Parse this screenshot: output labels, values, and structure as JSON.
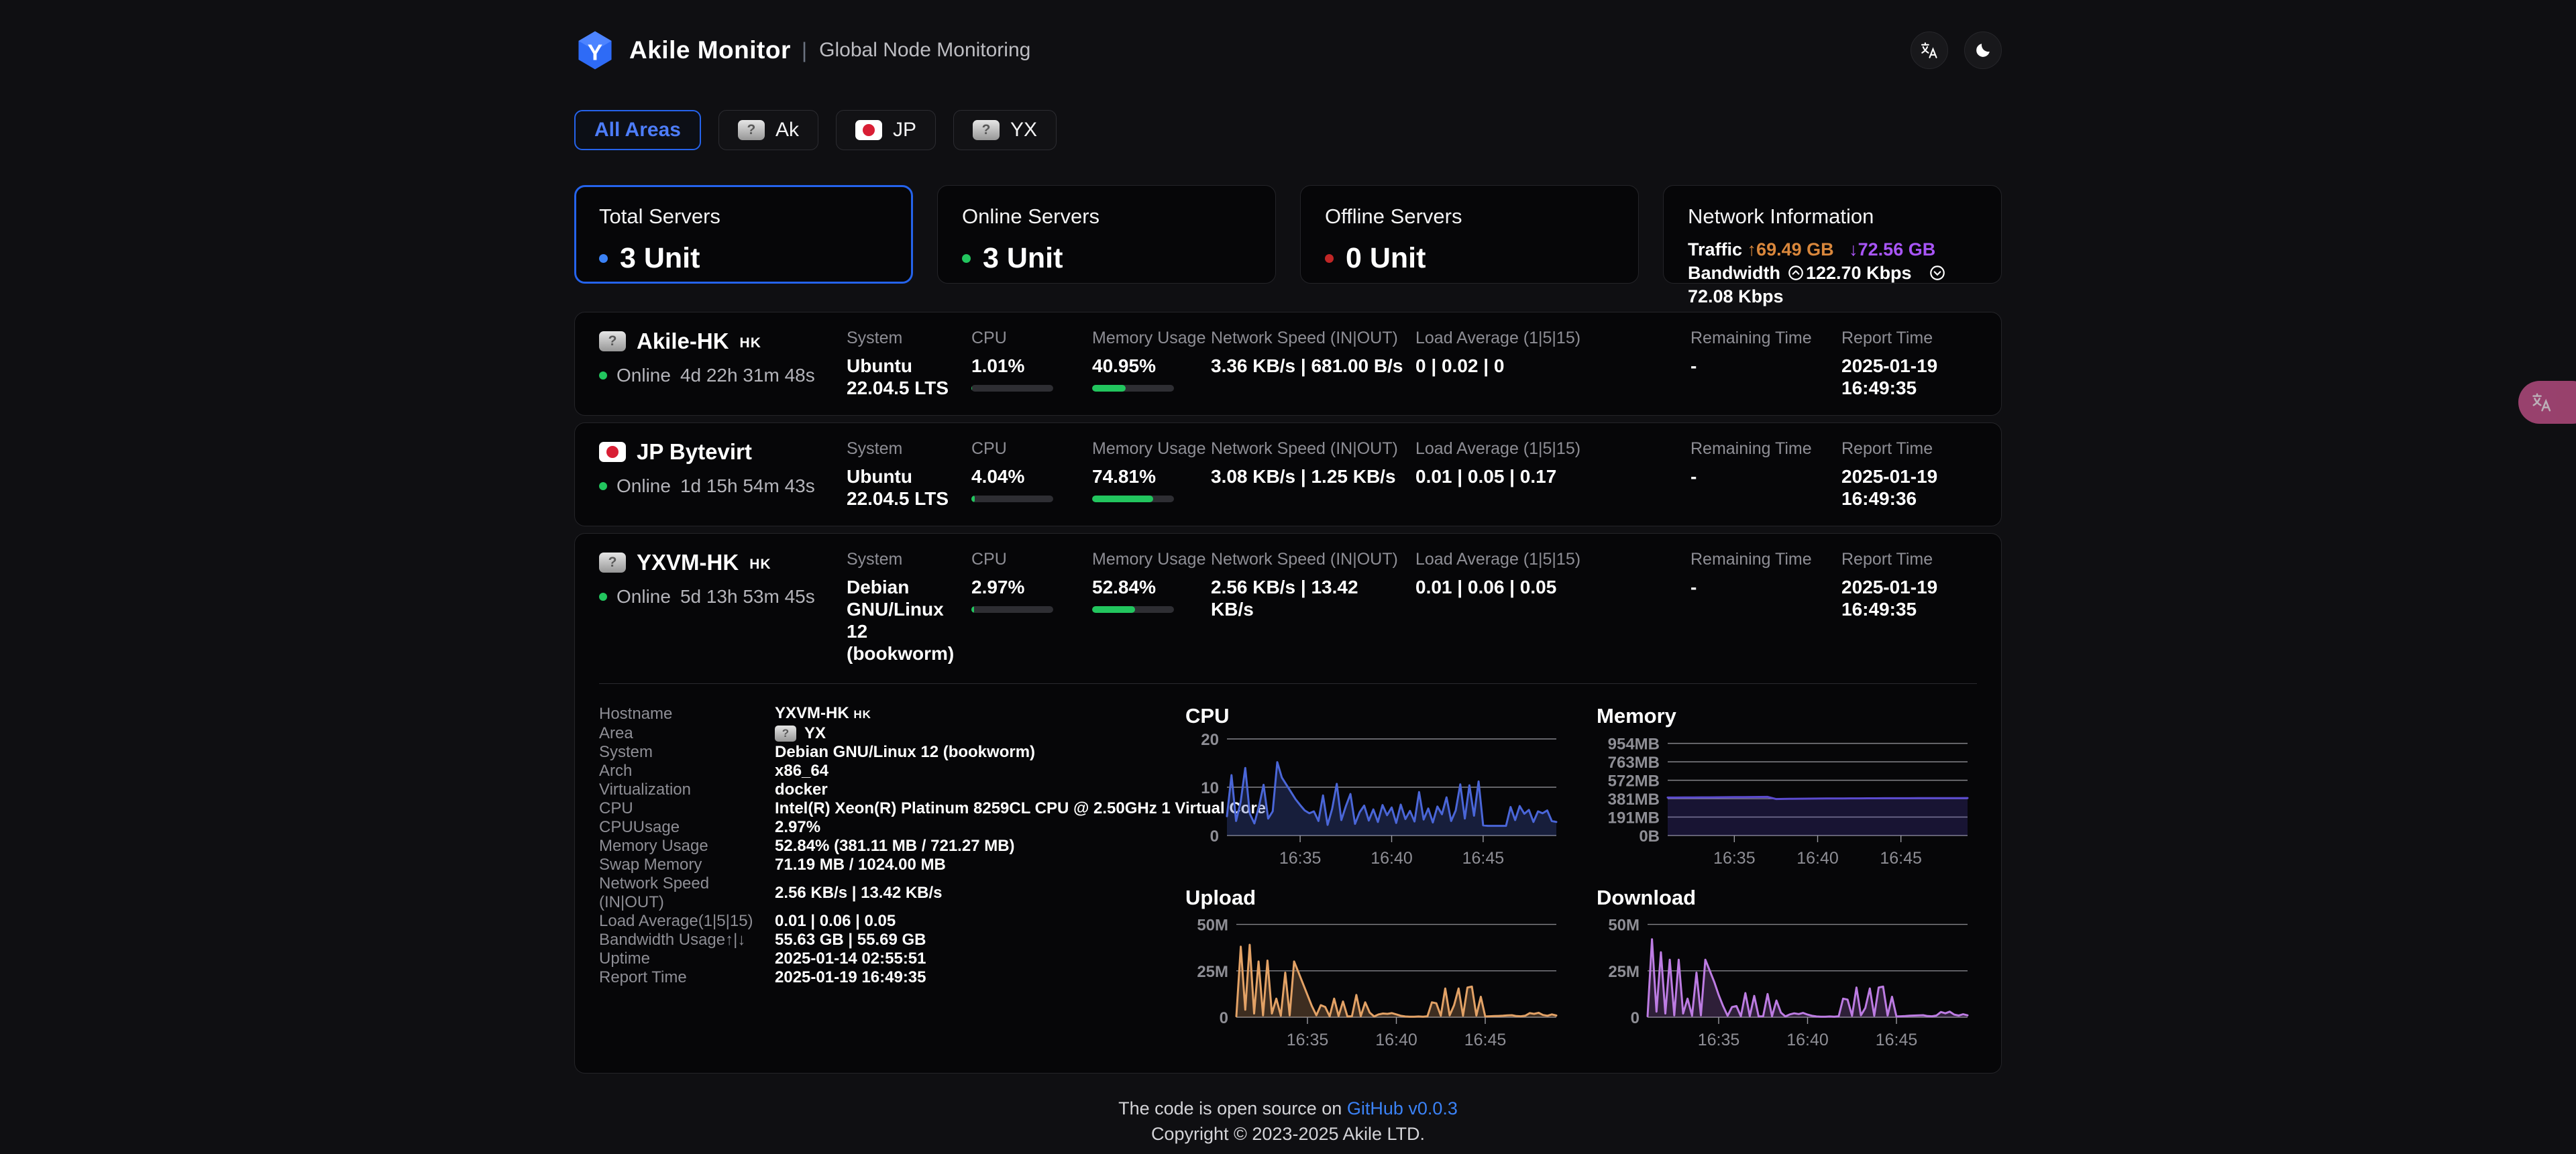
{
  "header": {
    "title": "Akile Monitor",
    "separator": "|",
    "subtitle": "Global Node Monitoring"
  },
  "tabs": [
    {
      "label": "All Areas",
      "active": true
    },
    {
      "label": "Ak",
      "flag": "unknown",
      "flag_char": "?"
    },
    {
      "label": "JP",
      "flag": "jp"
    },
    {
      "label": "YX",
      "flag": "unknown",
      "flag_char": "?"
    }
  ],
  "stats": {
    "cards": [
      {
        "title": "Total Servers",
        "value": "3 Unit",
        "dot_color": "#3b82f6"
      },
      {
        "title": "Online Servers",
        "value": "3 Unit",
        "dot_color": "#22c55e"
      },
      {
        "title": "Offline Servers",
        "value": "0 Unit",
        "dot_color": "#c02626"
      }
    ],
    "network": {
      "title": "Network Information",
      "traffic_label": "Traffic",
      "traffic_up": "↑69.49 GB",
      "traffic_down": "↓72.56 GB",
      "bandwidth_label": "Bandwidth",
      "bandwidth_up": "122.70 Kbps",
      "bandwidth_down": "72.08 Kbps"
    }
  },
  "columns": {
    "system": "System",
    "cpu": "CPU",
    "memory": "Memory Usage",
    "network": "Network Speed (IN|OUT)",
    "load": "Load Average (1|5|15)",
    "remaining": "Remaining Time",
    "report": "Report Time"
  },
  "servers": [
    {
      "flag": "unknown",
      "flag_char": "?",
      "name": "Akile-HK",
      "region": "HK",
      "status": "Online",
      "uptime": "4d 22h 31m 48s",
      "system": "Ubuntu 22.04.5 LTS",
      "cpu": "1.01%",
      "cpu_pct": 1.01,
      "memory": "40.95%",
      "mem_pct": 40.95,
      "network": "3.36 KB/s | 681.00 B/s",
      "load": "0 | 0.02 | 0",
      "remaining": "-",
      "report": "2025-01-19 16:49:35"
    },
    {
      "flag": "jp",
      "flag_char": "",
      "name": "JP Bytevirt",
      "region": "",
      "status": "Online",
      "uptime": "1d 15h 54m 43s",
      "system": "Ubuntu 22.04.5 LTS",
      "cpu": "4.04%",
      "cpu_pct": 4.04,
      "memory": "74.81%",
      "mem_pct": 74.81,
      "network": "3.08 KB/s | 1.25 KB/s",
      "load": "0.01 | 0.05 | 0.17",
      "remaining": "-",
      "report": "2025-01-19 16:49:36"
    },
    {
      "flag": "unknown",
      "flag_char": "?",
      "name": "YXVM-HK",
      "region": "HK",
      "status": "Online",
      "uptime": "5d 13h 53m 45s",
      "system": "Debian GNU/Linux 12 (bookworm)",
      "cpu": "2.97%",
      "cpu_pct": 2.97,
      "memory": "52.84%",
      "mem_pct": 52.84,
      "network": "2.56 KB/s | 13.42 KB/s",
      "load": "0.01 | 0.06 | 0.05",
      "remaining": "-",
      "report": "2025-01-19 16:49:35"
    }
  ],
  "detail": {
    "hostname_label": "Hostname",
    "hostname": "YXVM-HK",
    "hostname_region": "HK",
    "area_label": "Area",
    "area_flag_char": "?",
    "area": "YX",
    "rows": [
      {
        "label": "System",
        "value": "Debian GNU/Linux 12 (bookworm)"
      },
      {
        "label": "Arch",
        "value": "x86_64"
      },
      {
        "label": "Virtualization",
        "value": "docker"
      },
      {
        "label": "CPU",
        "value": "Intel(R) Xeon(R) Platinum 8259CL CPU @ 2.50GHz 1 Virtual Core"
      },
      {
        "label": "CPUUsage",
        "value": "2.97%"
      },
      {
        "label": "Memory Usage",
        "value": "52.84% (381.11 MB / 721.27 MB)"
      },
      {
        "label": "Swap Memory",
        "value": "71.19 MB / 1024.00 MB"
      },
      {
        "label": "Network Speed  (IN|OUT)",
        "value": "2.56 KB/s | 13.42 KB/s"
      },
      {
        "label": "Load Average(1|5|15)",
        "value": "0.01 | 0.06 | 0.05"
      },
      {
        "label": "Bandwidth Usage↑|↓",
        "value": "55.63 GB | 55.69 GB"
      },
      {
        "label": "Uptime",
        "value": "2025-01-14 02:55:51"
      },
      {
        "label": "Report Time",
        "value": "2025-01-19 16:49:35"
      }
    ]
  },
  "charts": {
    "cpu": {
      "type": "area",
      "title": "CPU",
      "ylabel": "percent",
      "ylim": [
        0,
        20
      ],
      "color": "#4a66d8",
      "fill": "rgba(63,86,180,0.30)",
      "gutter": 66,
      "t_start": 0,
      "t_end": 18,
      "t_step": 0.25,
      "y_ticks": [
        {
          "v": 0,
          "label": "0"
        },
        {
          "v": 10,
          "label": "10"
        },
        {
          "v": 20,
          "label": "20"
        }
      ],
      "x_ticks": [
        {
          "t": 4,
          "label": "16:35"
        },
        {
          "t": 9,
          "label": "16:40"
        },
        {
          "t": 14,
          "label": "16:45"
        }
      ],
      "values": [
        4,
        12.5,
        3,
        7,
        14,
        4.5,
        2.5,
        6,
        10.5,
        3.5,
        5,
        15.2,
        12,
        10.5,
        9,
        7.5,
        6.3,
        5.2,
        4.6,
        5,
        3,
        8.3,
        2.2,
        5.5,
        10.7,
        3.2,
        6.1,
        8.6,
        2.4,
        4.8,
        6.2,
        3.1,
        5.4,
        2.8,
        6.3,
        4.2,
        5.8,
        2.6,
        6.4,
        3.4,
        5.1,
        2.9,
        9,
        3.3,
        5.6,
        2.7,
        6,
        4.4,
        7.9,
        3,
        5.2,
        10.6,
        3.5,
        10.4,
        4.1,
        11.2,
        2.1,
        2,
        2,
        2,
        2,
        2,
        5.9,
        3.2,
        6.1,
        4.5,
        5.3,
        2.8,
        5,
        4.6,
        5.2,
        3,
        2.8
      ]
    },
    "memory": {
      "type": "area",
      "title": "Memory",
      "ylabel": "MB",
      "ylim": [
        0,
        1000
      ],
      "color": "#5b4bcf",
      "fill": "rgba(91,75,207,0.22)",
      "gutter": 110,
      "t_start": 0,
      "t_end": 18,
      "t_step": 0.5,
      "y_ticks": [
        {
          "v": 0,
          "label": "0B"
        },
        {
          "v": 191,
          "label": "191MB"
        },
        {
          "v": 381,
          "label": "381MB"
        },
        {
          "v": 572,
          "label": "572MB"
        },
        {
          "v": 763,
          "label": "763MB"
        },
        {
          "v": 954,
          "label": "954MB"
        }
      ],
      "x_ticks": [
        {
          "t": 4,
          "label": "16:35"
        },
        {
          "t": 9,
          "label": "16:40"
        },
        {
          "t": 14,
          "label": "16:45"
        }
      ],
      "values": [
        393,
        393.3,
        393.8,
        394.2,
        394.8,
        395.3,
        395.9,
        396.4,
        397,
        397.8,
        398.5,
        399.2,
        400,
        378,
        379,
        380.5,
        381,
        382,
        382.5,
        383,
        383.5,
        384,
        384.5,
        385,
        385.2,
        385.5,
        385.8,
        386,
        386,
        386.2,
        386.5,
        386.8,
        387,
        387.2,
        387.5,
        387.8,
        388
      ]
    },
    "upload": {
      "type": "area",
      "title": "Upload",
      "ylabel": "MB/s",
      "ylim": [
        0,
        52
      ],
      "color": "#e3a266",
      "fill": "rgba(227,162,102,0.25)",
      "gutter": 80,
      "t_start": 0,
      "t_end": 18,
      "t_step": 0.25,
      "y_ticks": [
        {
          "v": 0,
          "label": "0"
        },
        {
          "v": 25,
          "label": "25M"
        },
        {
          "v": 50,
          "label": "50M"
        }
      ],
      "x_ticks": [
        {
          "t": 4,
          "label": "16:35"
        },
        {
          "t": 9,
          "label": "16:40"
        },
        {
          "t": 14,
          "label": "16:45"
        }
      ],
      "values": [
        0.5,
        38,
        4,
        39,
        2,
        30,
        1,
        30.5,
        2,
        10,
        0.8,
        24,
        1,
        30,
        24,
        18,
        12,
        6,
        1,
        6.5,
        5.5,
        0.5,
        10,
        0.6,
        8.5,
        0.4,
        0.5,
        12,
        0.5,
        8,
        2.5,
        0.4,
        1.5,
        2,
        1.8,
        2.2,
        1.5,
        0.8,
        0.4,
        0.3,
        0.3,
        0.4,
        0.3,
        0.5,
        8,
        7.5,
        0.8,
        15.5,
        1,
        6.5,
        15.5,
        0.8,
        16,
        16.5,
        0.9,
        11,
        0.4,
        0.5,
        0.6,
        0.7,
        0.8,
        1,
        1.1,
        0.6,
        0.5,
        0.8,
        2.2,
        1.8,
        2.4,
        1.2,
        0.8,
        1.5,
        0.9
      ]
    },
    "download": {
      "type": "area",
      "title": "Download",
      "ylabel": "MB/s",
      "ylim": [
        0,
        52
      ],
      "color": "#bd7ce3",
      "fill": "rgba(189,124,227,0.22)",
      "gutter": 80,
      "t_start": 0,
      "t_end": 18,
      "t_step": 0.25,
      "y_ticks": [
        {
          "v": 0,
          "label": "0"
        },
        {
          "v": 25,
          "label": "25M"
        },
        {
          "v": 50,
          "label": "50M"
        }
      ],
      "x_ticks": [
        {
          "t": 4,
          "label": "16:35"
        },
        {
          "t": 9,
          "label": "16:40"
        },
        {
          "t": 14,
          "label": "16:45"
        }
      ],
      "values": [
        0.5,
        42,
        3,
        35,
        2,
        31,
        1,
        31,
        2,
        10,
        0.8,
        24,
        1,
        31,
        25,
        19,
        12,
        6,
        0.8,
        5.5,
        6,
        0.5,
        13,
        0.6,
        11.5,
        0.4,
        0.5,
        12.5,
        0.5,
        9,
        2.5,
        0.4,
        1.5,
        2.1,
        1.7,
        2.3,
        1.4,
        0.8,
        0.4,
        0.3,
        0.3,
        0.4,
        0.3,
        0.5,
        10,
        9.5,
        0.8,
        16,
        1,
        5,
        15.5,
        0.8,
        16,
        16.5,
        0.9,
        11,
        0.4,
        0.5,
        0.6,
        0.8,
        0.9,
        1,
        1.1,
        0.6,
        0.5,
        0.9,
        2.8,
        2.1,
        3,
        1.4,
        0.9,
        1.6,
        1
      ]
    }
  },
  "footer": {
    "line1_prefix": "The code is open source on ",
    "link": "GitHub v0.0.3",
    "line2": "Copyright © 2023-2025 Akile LTD."
  },
  "colors": {
    "accent_blue": "#2563eb",
    "online_green": "#22c55e",
    "offline_red": "#c02626",
    "traffic_up_orange": "#d9873c",
    "traffic_down_purple": "#a855f7"
  }
}
